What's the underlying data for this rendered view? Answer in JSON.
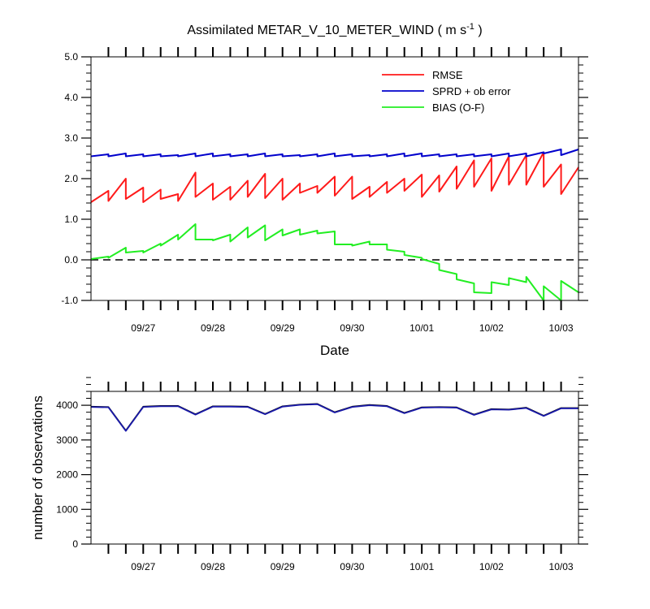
{
  "chart_data": [
    {
      "type": "line",
      "title": "Assimilated METAR_V_10_METER_WIND",
      "title_units": "( m s",
      "title_units_sup": "-1",
      "title_units_close": " )",
      "xlabel": "Date",
      "ylabel": "",
      "ylim": [
        -1.0,
        5.0
      ],
      "yticks": [
        "-1.0",
        "0.0",
        "1.0",
        "2.0",
        "3.0",
        "4.0",
        "5.0"
      ],
      "xlim_hours": [
        0,
        168
      ],
      "xticks": [
        {
          "label": "09/27",
          "hour": 18
        },
        {
          "label": "09/28",
          "hour": 42
        },
        {
          "label": "09/29",
          "hour": 66
        },
        {
          "label": "09/30",
          "hour": 90
        },
        {
          "label": "10/01",
          "hour": 114
        },
        {
          "label": "10/02",
          "hour": 138
        },
        {
          "label": "10/03",
          "hour": 162
        }
      ],
      "legend_position": "top-right",
      "zero_line": "dashed",
      "colors": {
        "rmse": "#ff1a1a",
        "sprd": "#0000cc",
        "bias": "#22ee22",
        "zero": "#000000"
      },
      "series": [
        {
          "name": "RMSE",
          "key": "rmse",
          "points": [
            [
              0,
              1.42
            ],
            [
              6,
              1.7
            ],
            [
              6,
              1.45
            ],
            [
              12,
              2.0
            ],
            [
              12,
              1.5
            ],
            [
              18,
              1.78
            ],
            [
              18,
              1.42
            ],
            [
              24,
              1.73
            ],
            [
              24,
              1.5
            ],
            [
              30,
              1.62
            ],
            [
              30,
              1.45
            ],
            [
              36,
              2.15
            ],
            [
              36,
              1.55
            ],
            [
              42,
              1.88
            ],
            [
              42,
              1.48
            ],
            [
              48,
              1.8
            ],
            [
              48,
              1.48
            ],
            [
              54,
              1.95
            ],
            [
              54,
              1.55
            ],
            [
              60,
              2.12
            ],
            [
              60,
              1.52
            ],
            [
              66,
              2.0
            ],
            [
              66,
              1.48
            ],
            [
              72,
              1.88
            ],
            [
              72,
              1.65
            ],
            [
              78,
              1.82
            ],
            [
              78,
              1.65
            ],
            [
              84,
              2.05
            ],
            [
              84,
              1.58
            ],
            [
              90,
              2.05
            ],
            [
              90,
              1.5
            ],
            [
              96,
              1.8
            ],
            [
              96,
              1.55
            ],
            [
              102,
              1.92
            ],
            [
              102,
              1.65
            ],
            [
              108,
              2.0
            ],
            [
              108,
              1.7
            ],
            [
              114,
              2.1
            ],
            [
              114,
              1.55
            ],
            [
              120,
              2.08
            ],
            [
              120,
              1.68
            ],
            [
              126,
              2.3
            ],
            [
              126,
              1.75
            ],
            [
              132,
              2.45
            ],
            [
              132,
              1.8
            ],
            [
              138,
              2.5
            ],
            [
              138,
              1.7
            ],
            [
              144,
              2.55
            ],
            [
              144,
              1.85
            ],
            [
              150,
              2.58
            ],
            [
              150,
              1.85
            ],
            [
              156,
              2.65
            ],
            [
              156,
              1.8
            ],
            [
              162,
              2.35
            ],
            [
              162,
              1.62
            ],
            [
              168,
              2.28
            ]
          ]
        },
        {
          "name": "SPRD + ob error",
          "key": "sprd",
          "points": [
            [
              0,
              2.55
            ],
            [
              6,
              2.6
            ],
            [
              6,
              2.55
            ],
            [
              12,
              2.62
            ],
            [
              12,
              2.55
            ],
            [
              18,
              2.6
            ],
            [
              18,
              2.55
            ],
            [
              24,
              2.6
            ],
            [
              24,
              2.55
            ],
            [
              30,
              2.58
            ],
            [
              30,
              2.55
            ],
            [
              36,
              2.62
            ],
            [
              36,
              2.55
            ],
            [
              42,
              2.62
            ],
            [
              42,
              2.55
            ],
            [
              48,
              2.6
            ],
            [
              48,
              2.55
            ],
            [
              54,
              2.6
            ],
            [
              54,
              2.55
            ],
            [
              60,
              2.62
            ],
            [
              60,
              2.55
            ],
            [
              66,
              2.6
            ],
            [
              66,
              2.55
            ],
            [
              72,
              2.58
            ],
            [
              72,
              2.55
            ],
            [
              78,
              2.6
            ],
            [
              78,
              2.55
            ],
            [
              84,
              2.62
            ],
            [
              84,
              2.55
            ],
            [
              90,
              2.6
            ],
            [
              90,
              2.55
            ],
            [
              96,
              2.58
            ],
            [
              96,
              2.55
            ],
            [
              102,
              2.6
            ],
            [
              102,
              2.55
            ],
            [
              108,
              2.62
            ],
            [
              108,
              2.55
            ],
            [
              114,
              2.62
            ],
            [
              114,
              2.55
            ],
            [
              120,
              2.6
            ],
            [
              120,
              2.55
            ],
            [
              126,
              2.6
            ],
            [
              126,
              2.55
            ],
            [
              132,
              2.6
            ],
            [
              132,
              2.55
            ],
            [
              138,
              2.6
            ],
            [
              138,
              2.55
            ],
            [
              144,
              2.62
            ],
            [
              144,
              2.55
            ],
            [
              150,
              2.62
            ],
            [
              150,
              2.55
            ],
            [
              156,
              2.65
            ],
            [
              156,
              2.62
            ],
            [
              162,
              2.72
            ],
            [
              162,
              2.58
            ],
            [
              168,
              2.72
            ]
          ]
        },
        {
          "name": "BIAS (O-F)",
          "key": "bias",
          "points": [
            [
              0,
              0.02
            ],
            [
              6,
              0.08
            ],
            [
              6,
              0.05
            ],
            [
              12,
              0.3
            ],
            [
              12,
              0.18
            ],
            [
              18,
              0.22
            ],
            [
              18,
              0.18
            ],
            [
              24,
              0.4
            ],
            [
              24,
              0.35
            ],
            [
              30,
              0.62
            ],
            [
              30,
              0.5
            ],
            [
              36,
              0.88
            ],
            [
              36,
              0.5
            ],
            [
              42,
              0.5
            ],
            [
              42,
              0.48
            ],
            [
              48,
              0.62
            ],
            [
              48,
              0.45
            ],
            [
              54,
              0.8
            ],
            [
              54,
              0.55
            ],
            [
              60,
              0.85
            ],
            [
              60,
              0.48
            ],
            [
              66,
              0.75
            ],
            [
              66,
              0.6
            ],
            [
              72,
              0.75
            ],
            [
              72,
              0.62
            ],
            [
              78,
              0.72
            ],
            [
              78,
              0.65
            ],
            [
              84,
              0.7
            ],
            [
              84,
              0.38
            ],
            [
              90,
              0.38
            ],
            [
              90,
              0.35
            ],
            [
              96,
              0.45
            ],
            [
              96,
              0.38
            ],
            [
              102,
              0.38
            ],
            [
              102,
              0.25
            ],
            [
              108,
              0.2
            ],
            [
              108,
              0.12
            ],
            [
              114,
              0.05
            ],
            [
              114,
              0.02
            ],
            [
              120,
              -0.1
            ],
            [
              120,
              -0.25
            ],
            [
              126,
              -0.35
            ],
            [
              126,
              -0.48
            ],
            [
              132,
              -0.58
            ],
            [
              132,
              -0.8
            ],
            [
              138,
              -0.82
            ],
            [
              138,
              -0.55
            ],
            [
              144,
              -0.62
            ],
            [
              144,
              -0.45
            ],
            [
              150,
              -0.55
            ],
            [
              150,
              -0.42
            ],
            [
              156,
              -1.0
            ],
            [
              156,
              -0.65
            ],
            [
              162,
              -1.0
            ],
            [
              162,
              -0.52
            ],
            [
              168,
              -0.8
            ]
          ]
        }
      ]
    },
    {
      "type": "line",
      "title": "",
      "xlabel": "",
      "ylabel": "number of observations",
      "ylim": [
        0,
        4400
      ],
      "yticks": [
        "0",
        "1000",
        "2000",
        "3000",
        "4000"
      ],
      "xlim_hours": [
        0,
        168
      ],
      "xticks": [
        {
          "label": "09/27",
          "hour": 18
        },
        {
          "label": "09/28",
          "hour": 42
        },
        {
          "label": "09/29",
          "hour": 66
        },
        {
          "label": "09/30",
          "hour": 90
        },
        {
          "label": "10/01",
          "hour": 114
        },
        {
          "label": "10/02",
          "hour": 138
        },
        {
          "label": "10/03",
          "hour": 162
        }
      ],
      "colors": {
        "possible": "#000000",
        "assimilated": "#1a1aaa"
      },
      "series": [
        {
          "key": "possible",
          "points": [
            [
              0,
              3960
            ],
            [
              6,
              3950
            ],
            [
              12,
              3270
            ],
            [
              18,
              3960
            ],
            [
              24,
              3980
            ],
            [
              30,
              3980
            ],
            [
              36,
              3740
            ],
            [
              42,
              3970
            ],
            [
              48,
              3970
            ],
            [
              54,
              3960
            ],
            [
              60,
              3750
            ],
            [
              66,
              3970
            ],
            [
              72,
              4020
            ],
            [
              78,
              4040
            ],
            [
              84,
              3800
            ],
            [
              90,
              3960
            ],
            [
              96,
              4010
            ],
            [
              102,
              3980
            ],
            [
              108,
              3780
            ],
            [
              114,
              3940
            ],
            [
              120,
              3950
            ],
            [
              126,
              3940
            ],
            [
              132,
              3730
            ],
            [
              138,
              3890
            ],
            [
              144,
              3880
            ],
            [
              150,
              3930
            ],
            [
              156,
              3700
            ],
            [
              162,
              3920
            ],
            [
              168,
              3920
            ]
          ]
        },
        {
          "key": "assimilated",
          "points": [
            [
              0,
              3950
            ],
            [
              6,
              3940
            ],
            [
              12,
              3260
            ],
            [
              18,
              3950
            ],
            [
              24,
              3970
            ],
            [
              30,
              3970
            ],
            [
              36,
              3730
            ],
            [
              42,
              3960
            ],
            [
              48,
              3960
            ],
            [
              54,
              3950
            ],
            [
              60,
              3740
            ],
            [
              66,
              3960
            ],
            [
              72,
              4010
            ],
            [
              78,
              4030
            ],
            [
              84,
              3790
            ],
            [
              90,
              3950
            ],
            [
              96,
              4000
            ],
            [
              102,
              3970
            ],
            [
              108,
              3770
            ],
            [
              114,
              3930
            ],
            [
              120,
              3940
            ],
            [
              126,
              3930
            ],
            [
              132,
              3720
            ],
            [
              138,
              3880
            ],
            [
              144,
              3870
            ],
            [
              150,
              3920
            ],
            [
              156,
              3690
            ],
            [
              162,
              3910
            ],
            [
              168,
              3910
            ]
          ]
        }
      ]
    }
  ]
}
